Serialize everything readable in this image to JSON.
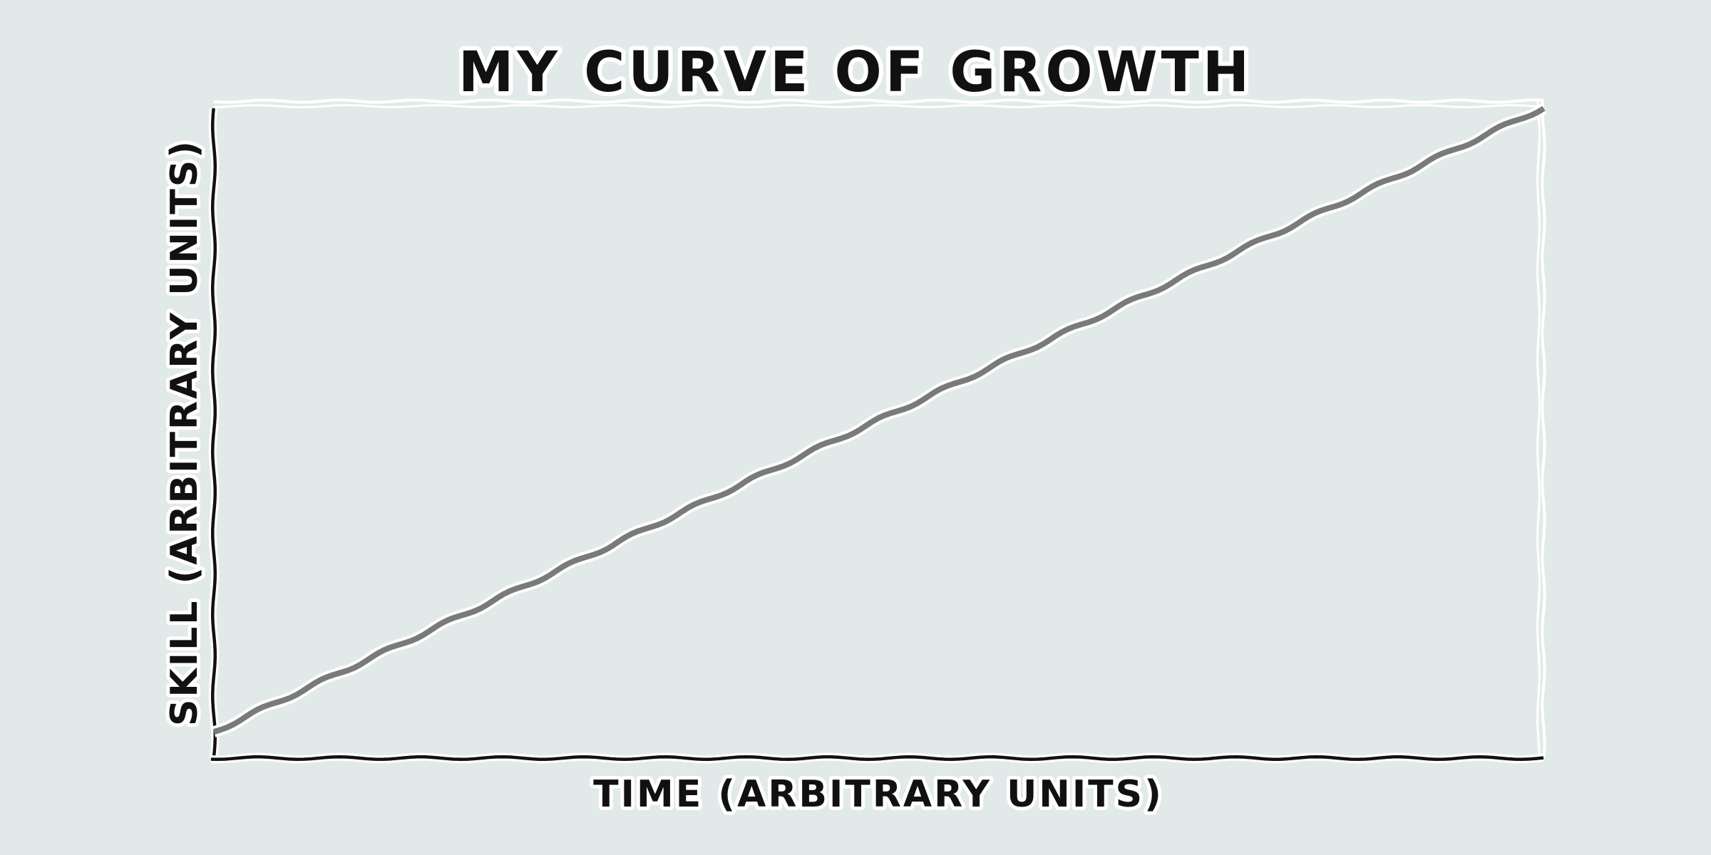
{
  "chart_data": {
    "type": "line",
    "title": "MY CURVE OF GROWTH",
    "xlabel": "TIME (ARBITRARY UNITS)",
    "ylabel": "SKILL (ARBITRARY UNITS)",
    "xlim": [
      0,
      100
    ],
    "ylim": [
      0,
      100
    ],
    "grid": false,
    "series": [
      {
        "x": [
          0,
          10,
          20,
          30,
          40,
          50,
          60,
          70,
          80,
          90,
          100
        ],
        "y": [
          4,
          13.5,
          23,
          32.5,
          42,
          51.5,
          61,
          70.5,
          80,
          89.5,
          99
        ],
        "color": "#7a7a7a"
      }
    ],
    "colors": {
      "background": "#e2eae9",
      "axis": "#111111",
      "halo": "#ffffff",
      "text": "#111111"
    }
  }
}
